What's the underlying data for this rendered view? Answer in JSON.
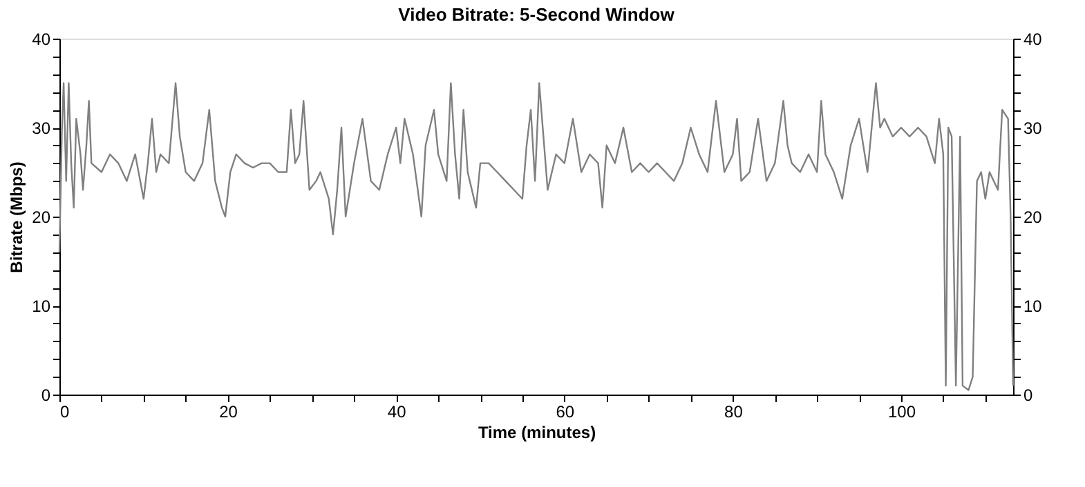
{
  "chart_data": {
    "type": "line",
    "title": "Video Bitrate: 5-Second Window",
    "xlabel": "Time (minutes)",
    "ylabel": "Bitrate (Mbps)",
    "xlim": [
      0,
      113.3
    ],
    "xticks": [
      0,
      {
        "value": 5,
        "label": null
      },
      {
        "value": 10,
        "label": null
      },
      {
        "value": 15,
        "label": null
      },
      20,
      {
        "value": 25,
        "label": null
      },
      {
        "value": 30,
        "label": null
      },
      {
        "value": 35,
        "label": null
      },
      40,
      {
        "value": 45,
        "label": null
      },
      {
        "value": 50,
        "label": null
      },
      {
        "value": 55,
        "label": null
      },
      60,
      {
        "value": 65,
        "label": null
      },
      {
        "value": 70,
        "label": null
      },
      {
        "value": 75,
        "label": null
      },
      80,
      {
        "value": 85,
        "label": null
      },
      {
        "value": 90,
        "label": null
      },
      {
        "value": 95,
        "label": null
      },
      100,
      {
        "value": 105,
        "label": null
      },
      {
        "value": 110,
        "label": null
      }
    ],
    "ylim": [
      0,
      40
    ],
    "yticks": [
      0,
      {
        "value": 2,
        "label": null
      },
      {
        "value": 4,
        "label": null
      },
      {
        "value": 6,
        "label": null
      },
      {
        "value": 8,
        "label": null
      },
      10,
      {
        "value": 12,
        "label": null
      },
      {
        "value": 14,
        "label": null
      },
      {
        "value": 16,
        "label": null
      },
      {
        "value": 18,
        "label": null
      },
      20,
      {
        "value": 22,
        "label": null
      },
      {
        "value": 24,
        "label": null
      },
      {
        "value": 26,
        "label": null
      },
      {
        "value": 28,
        "label": null
      },
      30,
      {
        "value": 32,
        "label": null
      },
      {
        "value": 34,
        "label": null
      },
      {
        "value": 36,
        "label": null
      },
      {
        "value": 38,
        "label": null
      },
      40
    ],
    "y2lim": [
      0,
      40
    ],
    "y2ticks": [
      0,
      {
        "value": 2,
        "label": null
      },
      {
        "value": 4,
        "label": null
      },
      {
        "value": 6,
        "label": null
      },
      {
        "value": 8,
        "label": null
      },
      10,
      {
        "value": 12,
        "label": null
      },
      {
        "value": 14,
        "label": null
      },
      {
        "value": 16,
        "label": null
      },
      {
        "value": 18,
        "label": null
      },
      20,
      {
        "value": 22,
        "label": null
      },
      {
        "value": 24,
        "label": null
      },
      {
        "value": 26,
        "label": null
      },
      {
        "value": 28,
        "label": null
      },
      30,
      {
        "value": 32,
        "label": null
      },
      {
        "value": 34,
        "label": null
      },
      {
        "value": 36,
        "label": null
      },
      {
        "value": 38,
        "label": null
      },
      40
    ],
    "grid": false,
    "line_style": "solid",
    "series": [
      {
        "color": "#808080",
        "x": [
          0,
          0.3,
          0.5,
          0.8,
          1.1,
          1.4,
          1.7,
          2,
          2.5,
          2.8,
          3.2,
          3.5,
          3.8,
          5,
          6,
          7,
          8,
          9,
          10,
          10.5,
          11,
          11.5,
          12,
          13,
          13.8,
          14.3,
          15,
          16,
          17,
          17.8,
          18.5,
          19.3,
          19.7,
          20.3,
          21,
          22,
          23,
          24,
          25,
          26,
          27,
          27.5,
          28,
          28.5,
          29,
          29.7,
          30.5,
          31,
          32,
          32.5,
          33,
          33.5,
          34,
          35,
          36,
          37,
          38,
          39,
          40,
          40.5,
          41,
          42,
          43,
          43.5,
          44.5,
          45,
          46,
          46.5,
          47,
          47.5,
          48,
          48.5,
          49.5,
          50,
          51,
          52,
          53,
          54,
          55,
          55.5,
          56,
          56.5,
          57,
          57.5,
          58,
          59,
          60,
          61,
          62,
          63,
          64,
          64.5,
          65,
          66,
          67,
          68,
          69,
          70,
          71,
          72,
          73,
          74,
          75,
          76,
          77,
          78,
          79,
          80,
          80.5,
          81,
          82,
          83,
          84,
          85,
          86,
          86.5,
          87,
          88,
          89,
          90,
          90.5,
          91,
          92,
          93,
          94,
          95,
          96,
          97,
          97.5,
          98,
          99,
          100,
          101,
          102,
          103,
          104,
          104.5,
          105,
          105.3,
          105.6,
          106,
          106.5,
          107,
          107.3,
          108,
          108.5,
          109,
          109.5,
          110,
          110.5,
          111,
          111.5,
          112,
          112.7,
          113,
          113.3
        ],
        "values": [
          16,
          30,
          35,
          24,
          35,
          26,
          21,
          31,
          27,
          23,
          28,
          33,
          26,
          25,
          27,
          26,
          24,
          27,
          22,
          26,
          31,
          25,
          27,
          26,
          35,
          29,
          25,
          24,
          26,
          32,
          24,
          21,
          20,
          25,
          27,
          26,
          25.5,
          26,
          26,
          25,
          25,
          32,
          26,
          27,
          33,
          23,
          24,
          25,
          22,
          18,
          23,
          30,
          20,
          26,
          31,
          24,
          23,
          27,
          30,
          26,
          31,
          27,
          20,
          28,
          32,
          27,
          24,
          35,
          27,
          22,
          32,
          25,
          21,
          26,
          26,
          25,
          24,
          23,
          22,
          28,
          32,
          24,
          35,
          29,
          23,
          27,
          26,
          31,
          25,
          27,
          26,
          21,
          28,
          26,
          30,
          25,
          26,
          25,
          26,
          25,
          24,
          26,
          30,
          27,
          25,
          33,
          25,
          27,
          31,
          24,
          25,
          31,
          24,
          26,
          33,
          28,
          26,
          25,
          27,
          25,
          33,
          27,
          25,
          22,
          28,
          31,
          25,
          35,
          30,
          31,
          29,
          30,
          29,
          30,
          29,
          26,
          31,
          27,
          1,
          30,
          29,
          1,
          29,
          1,
          0.5,
          2,
          24,
          25,
          22,
          25,
          24,
          23,
          32,
          31,
          20,
          1
        ]
      }
    ]
  }
}
